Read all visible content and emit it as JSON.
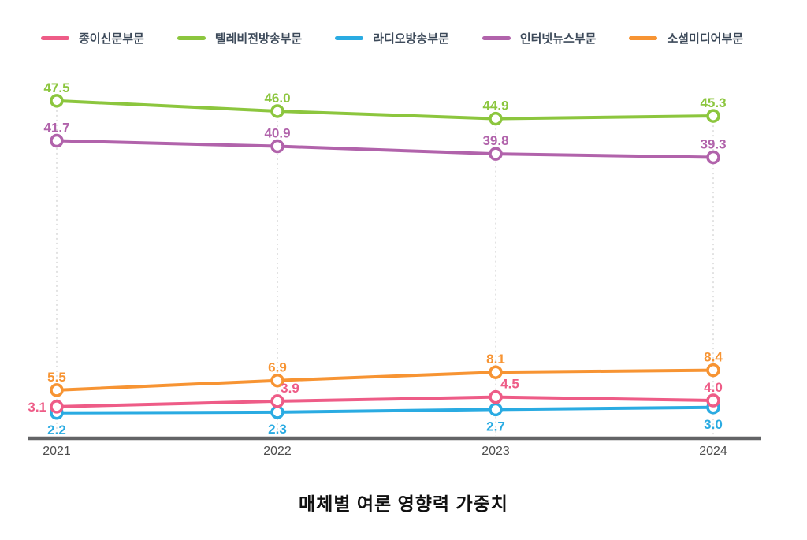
{
  "chart_data": {
    "type": "line",
    "categories": [
      "2021",
      "2022",
      "2023",
      "2024"
    ],
    "series": [
      {
        "name": "종이신문부문",
        "color": "#ee5c87",
        "values": [
          3.1,
          3.9,
          4.5,
          4.0
        ],
        "label_pos": "above",
        "label_pos_overrides": {
          "0": "left"
        },
        "label_dx": [
          0,
          16,
          18,
          0
        ]
      },
      {
        "name": "텔레비전방송부문",
        "color": "#8cc63e",
        "values": [
          47.5,
          46.0,
          44.9,
          45.3
        ],
        "label_pos": "above"
      },
      {
        "name": "라디오방송부문",
        "color": "#2aabe2",
        "values": [
          2.2,
          2.3,
          2.7,
          3.0
        ],
        "label_pos": "below"
      },
      {
        "name": "인터넷뉴스부문",
        "color": "#b163ab",
        "values": [
          41.7,
          40.9,
          39.8,
          39.3
        ],
        "label_pos": "above"
      },
      {
        "name": "소셜미디어부문",
        "color": "#f79433",
        "values": [
          5.5,
          6.9,
          8.1,
          8.4
        ],
        "label_pos": "above"
      }
    ],
    "title": "매체별 여론 영향력 가중치",
    "xlabel": "",
    "ylabel": "",
    "ylim": [
      0,
      50
    ],
    "legend_position": "top",
    "grid": "vertical-dotted",
    "value_label_format": "0.1f"
  },
  "axis": {
    "line_color": "#636466",
    "tick_label_color": "#4d4d4d"
  },
  "legend": {
    "text_color": "#3d4a5a"
  }
}
